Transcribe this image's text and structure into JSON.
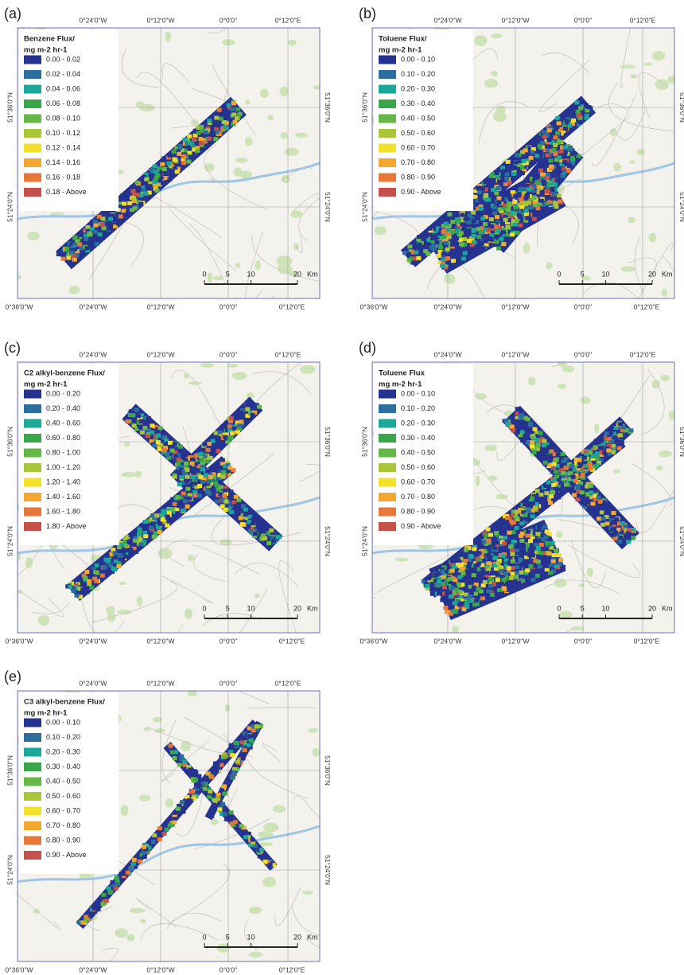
{
  "legend_colors": [
    "#26328f",
    "#2c6e9e",
    "#19a89a",
    "#3aa64a",
    "#66b846",
    "#aac63a",
    "#f3e02a",
    "#f4a832",
    "#e6783a",
    "#c6504a"
  ],
  "top_labels": [
    "0°24'0\"W",
    "0°12'0\"W",
    "0°0'0\"",
    "0°12'0\"E"
  ],
  "bottom_labels": [
    "0°36'0\"W",
    "0°24'0\"W",
    "0°12'0\"W",
    "0°0'0\"",
    "0°12'0\"E"
  ],
  "lat_labels": [
    "51°36'0\"N",
    "51°24'0\"N"
  ],
  "scale": {
    "ticks": [
      0,
      5,
      10,
      20
    ],
    "unit": "Km"
  },
  "panels": [
    {
      "label": "(a)",
      "legend_title": [
        "Benzene Flux/",
        "mg m-2 hr-1"
      ],
      "legend_labels": [
        "0.00 - 0.02",
        "0.02 - 0.04",
        "0.04 - 0.06",
        "0.06 - 0.08",
        "0.08 - 0.10",
        "0.10 - 0.12",
        "0.12 - 0.14",
        "0.14 - 0.16",
        "0.16 - 0.18",
        "0.18 - Above"
      ]
    },
    {
      "label": "(b)",
      "legend_title": [
        "Toluene Flux/",
        "mg m-2 hr-1"
      ],
      "legend_labels": [
        "0.00 - 0.10",
        "0.10 - 0.20",
        "0.20 - 0.30",
        "0.30 - 0.40",
        "0.40 - 0.50",
        "0.50 - 0.60",
        "0.60 - 0.70",
        "0.70 - 0.80",
        "0.80 - 0.90",
        "0.90 - Above"
      ]
    },
    {
      "label": "(c)",
      "legend_title": [
        "C2 alkyl-benzene Flux/",
        "mg m-2 hr-1"
      ],
      "legend_labels": [
        "0.00 - 0.20",
        "0.20 - 0.40",
        "0.40 - 0.60",
        "0.60 - 0.80",
        "0.80 - 1.00",
        "1.00 - 1.20",
        "1.20 - 1.40",
        "1.40 - 1.60",
        "1.60 - 1.80",
        "1.80 - Above"
      ]
    },
    {
      "label": "(d)",
      "legend_title": [
        "Toluene Flux",
        "mg m-2 hr-1"
      ],
      "legend_labels": [
        "0.00 - 0.10",
        "0.10 - 0.20",
        "0.20 - 0.30",
        "0.30 - 0.40",
        "0.40 - 0.50",
        "0.50 - 0.60",
        "0.60 - 0.70",
        "0.70 - 0.80",
        "0.80 - 0.90",
        "0.90 - Above"
      ]
    },
    {
      "label": "(e)",
      "legend_title": [
        "C3 alkyl-benzene Flux/",
        "mg m-2 hr-1"
      ],
      "legend_labels": [
        "0.00 - 0.10",
        "0.10 - 0.20",
        "0.20 - 0.30",
        "0.30 - 0.40",
        "0.40 - 0.50",
        "0.50 - 0.60",
        "0.60 - 0.70",
        "0.70 - 0.80",
        "0.80 - 0.90",
        "0.90 - Above"
      ]
    }
  ]
}
